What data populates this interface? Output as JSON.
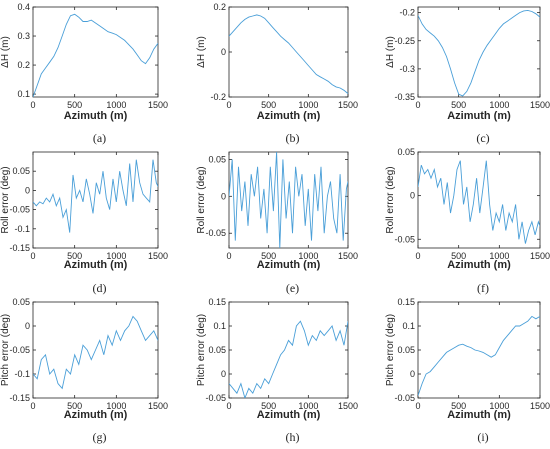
{
  "chart_data": [
    {
      "panel": "(a)",
      "type": "line",
      "xlabel": "Azimuth (m)",
      "ylabel": "ΔH (m)",
      "xlim": [
        0,
        1500
      ],
      "ylim": [
        0.09,
        0.4
      ],
      "xticks": [
        0,
        500,
        1000,
        1500
      ],
      "yticks": [
        0.1,
        0.2,
        0.3,
        0.4
      ],
      "xtick_labels": [
        "0",
        "500",
        "1000",
        "1500"
      ],
      "ytick_labels": [
        "0.1",
        "0.2",
        "0.3",
        "0.4"
      ],
      "color": "#4a9fd8",
      "x": [
        0,
        50,
        100,
        150,
        200,
        250,
        300,
        350,
        400,
        450,
        500,
        550,
        600,
        650,
        700,
        750,
        800,
        850,
        900,
        950,
        1000,
        1050,
        1100,
        1150,
        1200,
        1250,
        1300,
        1350,
        1400,
        1450,
        1500
      ],
      "y": [
        0.09,
        0.13,
        0.17,
        0.19,
        0.21,
        0.23,
        0.26,
        0.3,
        0.34,
        0.37,
        0.375,
        0.365,
        0.35,
        0.35,
        0.355,
        0.345,
        0.335,
        0.325,
        0.315,
        0.31,
        0.305,
        0.295,
        0.285,
        0.27,
        0.255,
        0.235,
        0.215,
        0.205,
        0.225,
        0.255,
        0.275
      ]
    },
    {
      "panel": "(b)",
      "type": "line",
      "xlabel": "Azimuth (m)",
      "ylabel": "ΔH (m)",
      "xlim": [
        0,
        1500
      ],
      "ylim": [
        -0.2,
        0.2
      ],
      "xticks": [
        0,
        500,
        1000,
        1500
      ],
      "yticks": [
        -0.2,
        0,
        0.2
      ],
      "xtick_labels": [
        "0",
        "500",
        "1000",
        "1500"
      ],
      "ytick_labels": [
        "-0.2",
        "0",
        "0.2"
      ],
      "color": "#4a9fd8",
      "x": [
        0,
        50,
        100,
        150,
        200,
        250,
        300,
        350,
        400,
        450,
        500,
        550,
        600,
        650,
        700,
        750,
        800,
        850,
        900,
        950,
        1000,
        1050,
        1100,
        1150,
        1200,
        1250,
        1300,
        1350,
        1400,
        1450,
        1500
      ],
      "y": [
        0.07,
        0.09,
        0.11,
        0.13,
        0.145,
        0.155,
        0.16,
        0.165,
        0.16,
        0.15,
        0.13,
        0.11,
        0.09,
        0.07,
        0.055,
        0.04,
        0.02,
        0.0,
        -0.02,
        -0.04,
        -0.06,
        -0.08,
        -0.1,
        -0.11,
        -0.12,
        -0.13,
        -0.145,
        -0.155,
        -0.16,
        -0.17,
        -0.185
      ]
    },
    {
      "panel": "(c)",
      "type": "line",
      "xlabel": "Azimuth (m)",
      "ylabel": "ΔH (m)",
      "xlim": [
        0,
        1500
      ],
      "ylim": [
        -0.35,
        -0.19
      ],
      "xticks": [
        0,
        500,
        1000,
        1500
      ],
      "yticks": [
        -0.35,
        -0.3,
        -0.25,
        -0.2
      ],
      "xtick_labels": [
        "0",
        "500",
        "1000",
        "1500"
      ],
      "ytick_labels": [
        "-0.35",
        "-0.3",
        "-0.25",
        "-0.2"
      ],
      "color": "#4a9fd8",
      "x": [
        0,
        50,
        100,
        150,
        200,
        250,
        300,
        350,
        400,
        450,
        500,
        550,
        600,
        650,
        700,
        750,
        800,
        850,
        900,
        950,
        1000,
        1050,
        1100,
        1150,
        1200,
        1250,
        1300,
        1350,
        1400,
        1450,
        1500
      ],
      "y": [
        -0.205,
        -0.22,
        -0.23,
        -0.236,
        -0.242,
        -0.25,
        -0.262,
        -0.278,
        -0.3,
        -0.325,
        -0.345,
        -0.348,
        -0.34,
        -0.325,
        -0.305,
        -0.285,
        -0.27,
        -0.258,
        -0.248,
        -0.238,
        -0.228,
        -0.22,
        -0.215,
        -0.21,
        -0.205,
        -0.2,
        -0.197,
        -0.196,
        -0.198,
        -0.202,
        -0.208
      ]
    },
    {
      "panel": "(d)",
      "type": "line",
      "xlabel": "Azimuth (m)",
      "ylabel": "Roll error (deg)",
      "xlim": [
        0,
        1500
      ],
      "ylim": [
        -0.15,
        0.1
      ],
      "xticks": [
        0,
        500,
        1000,
        1500
      ],
      "yticks": [
        -0.15,
        -0.1,
        -0.05,
        0,
        0.05
      ],
      "xtick_labels": [
        "0",
        "500",
        "1000",
        "1500"
      ],
      "ytick_labels": [
        "-0.15",
        "-0.1",
        "-0.05",
        "0",
        "0.05"
      ],
      "color": "#4a9fd8",
      "x": [
        0,
        40,
        80,
        120,
        160,
        200,
        240,
        280,
        320,
        360,
        400,
        440,
        480,
        520,
        560,
        600,
        640,
        680,
        720,
        760,
        800,
        840,
        880,
        920,
        960,
        1000,
        1040,
        1080,
        1120,
        1160,
        1200,
        1240,
        1280,
        1320,
        1360,
        1400,
        1440,
        1480,
        1500
      ],
      "y": [
        -0.03,
        -0.04,
        -0.03,
        -0.035,
        -0.02,
        -0.03,
        -0.01,
        -0.04,
        -0.02,
        -0.07,
        -0.05,
        -0.11,
        0.04,
        -0.02,
        0.0,
        -0.03,
        0.03,
        -0.01,
        -0.06,
        0.02,
        -0.01,
        0.05,
        -0.02,
        -0.05,
        0.03,
        -0.03,
        0.05,
        0.0,
        -0.04,
        0.07,
        -0.03,
        0.08,
        0.02,
        -0.01,
        -0.02,
        -0.03,
        0.08,
        0.02,
        0.01
      ]
    },
    {
      "panel": "(e)",
      "type": "line",
      "xlabel": "Azimuth (m)",
      "ylabel": "Roll error (deg)",
      "xlim": [
        0,
        1500
      ],
      "ylim": [
        -0.07,
        0.06
      ],
      "xticks": [
        0,
        500,
        1000,
        1500
      ],
      "yticks": [
        -0.05,
        0,
        0.05
      ],
      "xtick_labels": [
        "0",
        "500",
        "1000",
        "1500"
      ],
      "ytick_labels": [
        "-0.05",
        "0",
        "0.05"
      ],
      "color": "#4a9fd8",
      "x": [
        0,
        40,
        80,
        120,
        160,
        200,
        240,
        280,
        320,
        360,
        400,
        440,
        480,
        520,
        560,
        600,
        640,
        680,
        720,
        760,
        800,
        840,
        880,
        920,
        960,
        1000,
        1040,
        1080,
        1120,
        1160,
        1200,
        1240,
        1280,
        1320,
        1360,
        1400,
        1440,
        1480,
        1500
      ],
      "y": [
        0.0,
        0.05,
        -0.06,
        0.04,
        -0.02,
        0.02,
        -0.04,
        0.03,
        0.0,
        0.04,
        -0.03,
        0.01,
        -0.05,
        0.04,
        -0.02,
        0.06,
        -0.07,
        0.05,
        -0.03,
        0.02,
        -0.05,
        0.04,
        0.0,
        0.03,
        -0.04,
        0.01,
        -0.06,
        0.03,
        -0.02,
        0.04,
        -0.05,
        0.0,
        0.02,
        -0.03,
        -0.05,
        0.03,
        -0.06,
        0.01,
        0.02
      ]
    },
    {
      "panel": "(f)",
      "type": "line",
      "xlabel": "Azimuth (m)",
      "ylabel": "Roll error (deg)",
      "xlim": [
        0,
        1500
      ],
      "ylim": [
        -0.06,
        0.05
      ],
      "xticks": [
        0,
        500,
        1000,
        1500
      ],
      "yticks": [
        -0.05,
        0,
        0.05
      ],
      "xtick_labels": [
        "0",
        "500",
        "1000",
        "1500"
      ],
      "ytick_labels": [
        "-0.05",
        "0",
        "0.05"
      ],
      "color": "#4a9fd8",
      "x": [
        0,
        40,
        80,
        120,
        160,
        200,
        240,
        280,
        320,
        360,
        400,
        440,
        480,
        520,
        560,
        600,
        640,
        680,
        720,
        760,
        800,
        840,
        880,
        920,
        960,
        1000,
        1040,
        1080,
        1120,
        1160,
        1200,
        1240,
        1280,
        1320,
        1360,
        1400,
        1440,
        1480,
        1500
      ],
      "y": [
        0.01,
        0.035,
        0.025,
        0.03,
        0.02,
        0.03,
        0.01,
        0.02,
        -0.01,
        0.015,
        -0.02,
        0.0,
        0.03,
        0.04,
        -0.01,
        0.01,
        -0.03,
        -0.01,
        0.02,
        -0.02,
        0.01,
        0.04,
        -0.01,
        -0.04,
        -0.02,
        -0.03,
        -0.01,
        -0.04,
        -0.02,
        -0.03,
        -0.01,
        -0.05,
        -0.03,
        -0.055,
        -0.04,
        -0.03,
        -0.045,
        -0.03,
        -0.035
      ]
    },
    {
      "panel": "(g)",
      "type": "line",
      "xlabel": "Azimuth (m)",
      "ylabel": "Pitch error (deg)",
      "xlim": [
        0,
        1500
      ],
      "ylim": [
        -0.15,
        0.05
      ],
      "xticks": [
        0,
        500,
        1000,
        1500
      ],
      "yticks": [
        -0.15,
        -0.1,
        -0.05,
        0,
        0.05
      ],
      "xtick_labels": [
        "0",
        "500",
        "1000",
        "1500"
      ],
      "ytick_labels": [
        "-0.15",
        "-0.1",
        "-0.05",
        "0",
        "0.05"
      ],
      "color": "#4a9fd8",
      "x": [
        0,
        50,
        100,
        150,
        200,
        250,
        300,
        350,
        400,
        450,
        500,
        550,
        600,
        650,
        700,
        750,
        800,
        850,
        900,
        950,
        1000,
        1050,
        1100,
        1150,
        1200,
        1250,
        1300,
        1350,
        1400,
        1450,
        1500
      ],
      "y": [
        -0.1,
        -0.11,
        -0.07,
        -0.06,
        -0.1,
        -0.09,
        -0.12,
        -0.13,
        -0.09,
        -0.1,
        -0.06,
        -0.08,
        -0.04,
        -0.05,
        -0.07,
        -0.05,
        -0.03,
        -0.06,
        -0.02,
        -0.04,
        -0.01,
        -0.03,
        -0.01,
        0.0,
        0.02,
        0.01,
        -0.01,
        -0.03,
        -0.02,
        -0.01,
        -0.03
      ]
    },
    {
      "panel": "(h)",
      "type": "line",
      "xlabel": "Azimuth (m)",
      "ylabel": "Pitch error (deg)",
      "xlim": [
        0,
        1500
      ],
      "ylim": [
        -0.05,
        0.15
      ],
      "xticks": [
        0,
        500,
        1000,
        1500
      ],
      "yticks": [
        -0.05,
        0,
        0.05,
        0.1,
        0.15
      ],
      "xtick_labels": [
        "0",
        "500",
        "1000",
        "1500"
      ],
      "ytick_labels": [
        "-0.05",
        "0",
        "0.05",
        "0.1",
        "0.15"
      ],
      "color": "#4a9fd8",
      "x": [
        0,
        50,
        100,
        150,
        200,
        250,
        300,
        350,
        400,
        450,
        500,
        550,
        600,
        650,
        700,
        750,
        800,
        850,
        900,
        950,
        1000,
        1050,
        1100,
        1150,
        1200,
        1250,
        1300,
        1350,
        1400,
        1450,
        1500
      ],
      "y": [
        -0.02,
        -0.03,
        -0.04,
        -0.02,
        -0.05,
        -0.03,
        -0.04,
        -0.02,
        -0.03,
        -0.01,
        -0.02,
        0.0,
        0.02,
        0.04,
        0.05,
        0.07,
        0.06,
        0.1,
        0.11,
        0.09,
        0.06,
        0.08,
        0.07,
        0.09,
        0.08,
        0.09,
        0.1,
        0.07,
        0.09,
        0.06,
        0.11
      ]
    },
    {
      "panel": "(i)",
      "type": "line",
      "xlabel": "Azimuth (m)",
      "ylabel": "Pitch error (deg)",
      "xlim": [
        0,
        1500
      ],
      "ylim": [
        -0.05,
        0.15
      ],
      "xticks": [
        0,
        500,
        1000,
        1500
      ],
      "yticks": [
        -0.05,
        0,
        0.05,
        0.1,
        0.15
      ],
      "xtick_labels": [
        "0",
        "500",
        "1000",
        "1500"
      ],
      "ytick_labels": [
        "-0.05",
        "0",
        "0.05",
        "0.1",
        "0.15"
      ],
      "color": "#4a9fd8",
      "x": [
        0,
        50,
        100,
        150,
        200,
        250,
        300,
        350,
        400,
        450,
        500,
        550,
        600,
        650,
        700,
        750,
        800,
        850,
        900,
        950,
        1000,
        1050,
        1100,
        1150,
        1200,
        1250,
        1300,
        1350,
        1400,
        1450,
        1500
      ],
      "y": [
        -0.045,
        -0.02,
        0.0,
        0.005,
        0.015,
        0.025,
        0.035,
        0.045,
        0.05,
        0.055,
        0.06,
        0.062,
        0.058,
        0.055,
        0.05,
        0.048,
        0.045,
        0.04,
        0.035,
        0.04,
        0.055,
        0.07,
        0.08,
        0.09,
        0.1,
        0.1,
        0.105,
        0.11,
        0.12,
        0.115,
        0.12
      ]
    }
  ]
}
